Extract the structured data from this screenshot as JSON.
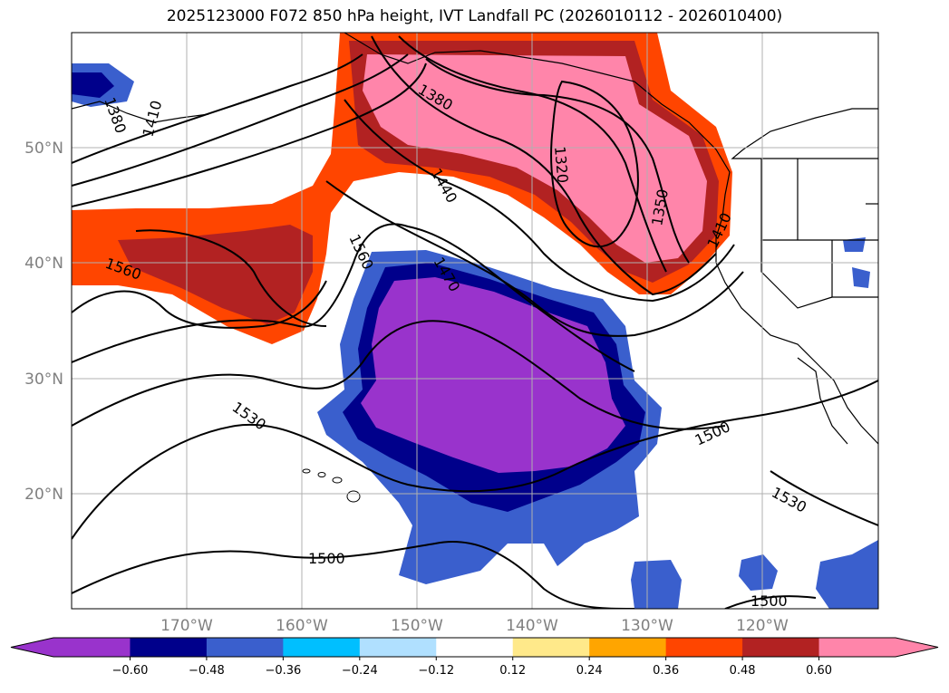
{
  "title": "2025123000 F072 850 hPa height, IVT Landfall PC (2026010112 - 2026010400)",
  "lat_ticks": [
    "50°N",
    "40°N",
    "30°N",
    "20°N"
  ],
  "lon_ticks": [
    "170°W",
    "160°W",
    "150°W",
    "140°W",
    "130°W",
    "120°W"
  ],
  "contour_labels": [
    "1380",
    "1410",
    "1380",
    "1320",
    "1440",
    "1350",
    "1410",
    "1560",
    "1560",
    "1470",
    "1530",
    "1500",
    "1530",
    "1500",
    "1500"
  ],
  "colorbar": {
    "tick_labels": [
      "−0.60",
      "−0.48",
      "−0.36",
      "−0.24",
      "−0.12",
      "0.12",
      "0.24",
      "0.36",
      "0.48",
      "0.60"
    ],
    "colors": [
      "#9933cc",
      "#00008b",
      "#3a5fcd",
      "#00bfff",
      "#b0e0ff",
      "#ffffff",
      "#ffe98a",
      "#ffa500",
      "#ff4500",
      "#b22222",
      "#ff85aa"
    ]
  },
  "fill_colors": {
    "orange": "#ff4500",
    "red": "#b22222",
    "pink": "#ff85aa",
    "purple": "#9933cc",
    "navy": "#00008b",
    "blue": "#3a5fcd",
    "cyan": "#00bfff"
  }
}
